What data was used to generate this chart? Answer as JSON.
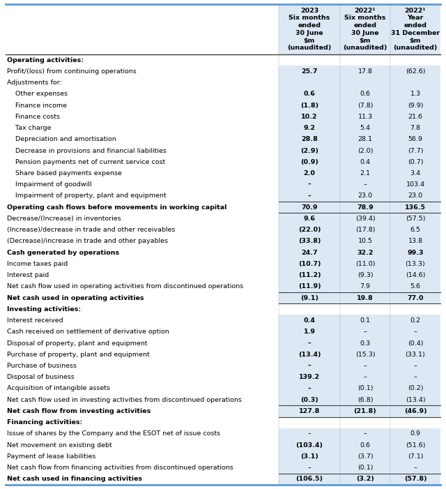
{
  "col_headers": [
    "2023\nSix months\nended\n30 June\n$m\n(unaudited)",
    "2022¹\nSix months\nended\n30 June\n$m\n(unaudited)",
    "2022¹\nYear\nended\n31 December\n$m\n(unaudited)"
  ],
  "rows": [
    {
      "label": "Operating activities:",
      "values": [
        "",
        "",
        ""
      ],
      "style": "section"
    },
    {
      "label": "Profit/(loss) from continuing operations",
      "values": [
        "25.7",
        "17.8",
        "(62.6)"
      ],
      "style": "normal",
      "bold_col0": true
    },
    {
      "label": "Adjustments for:",
      "values": [
        "",
        "",
        ""
      ],
      "style": "normal",
      "bold_col0": false
    },
    {
      "label": "    Other expenses",
      "values": [
        "0.6",
        "0.6",
        "1.3"
      ],
      "style": "normal",
      "bold_col0": true
    },
    {
      "label": "    Finance income",
      "values": [
        "(1.8)",
        "(7.8)",
        "(9.9)"
      ],
      "style": "normal",
      "bold_col0": true
    },
    {
      "label": "    Finance costs",
      "values": [
        "10.2",
        "11.3",
        "21.6"
      ],
      "style": "normal",
      "bold_col0": true
    },
    {
      "label": "    Tax charge",
      "values": [
        "9.2",
        "5.4",
        "7.8"
      ],
      "style": "normal",
      "bold_col0": true
    },
    {
      "label": "    Depreciation and amortisation",
      "values": [
        "28.8",
        "28.1",
        "56.9"
      ],
      "style": "normal",
      "bold_col0": true
    },
    {
      "label": "    Decrease in provisions and financial liabilities",
      "values": [
        "(2.9)",
        "(2.0)",
        "(7.7)"
      ],
      "style": "normal",
      "bold_col0": true
    },
    {
      "label": "    Pension payments net of current service cost",
      "values": [
        "(0.9)",
        "0.4",
        "(0.7)"
      ],
      "style": "normal",
      "bold_col0": true
    },
    {
      "label": "    Share based payments expense",
      "values": [
        "2.0",
        "2.1",
        "3.4"
      ],
      "style": "normal",
      "bold_col0": true
    },
    {
      "label": "    Impairment of goodwill",
      "values": [
        "–",
        "–",
        "103.4"
      ],
      "style": "normal",
      "bold_col0": true
    },
    {
      "label": "    Impairment of property, plant and equipment",
      "values": [
        "–",
        "23.0",
        "23.0"
      ],
      "style": "normal",
      "bold_col0": true
    },
    {
      "label": "Operating cash flows before movements in working capital",
      "values": [
        "70.9",
        "78.9",
        "136.5"
      ],
      "style": "bold_line"
    },
    {
      "label": "Decrease/(Increase) in inventories",
      "values": [
        "9.6",
        "(39.4)",
        "(57.5)"
      ],
      "style": "normal",
      "bold_col0": true
    },
    {
      "label": "(Increase)/decrease in trade and other receivables",
      "values": [
        "(22.0)",
        "(17.8)",
        "6.5"
      ],
      "style": "normal",
      "bold_col0": true
    },
    {
      "label": "(Decrease)/increase in trade and other payables",
      "values": [
        "(33.8)",
        "10.5",
        "13.8"
      ],
      "style": "normal",
      "bold_col0": true
    },
    {
      "label": "Cash generated by operations",
      "values": [
        "24.7",
        "32.2",
        "99.3"
      ],
      "style": "bold"
    },
    {
      "label": "Income taxes paid",
      "values": [
        "(10.7)",
        "(11.0)",
        "(13.3)"
      ],
      "style": "normal",
      "bold_col0": true
    },
    {
      "label": "Interest paid",
      "values": [
        "(11.2)",
        "(9.3)",
        "(14.6)"
      ],
      "style": "normal",
      "bold_col0": true
    },
    {
      "label": "Net cash flow used in operating activities from discontinued operations",
      "values": [
        "(11.9)",
        "7.9",
        "5.6"
      ],
      "style": "normal",
      "bold_col0": true
    },
    {
      "label": "Net cash used in operating activities",
      "values": [
        "(9.1)",
        "19.8",
        "77.0"
      ],
      "style": "bold_line"
    },
    {
      "label": "Investing activities:",
      "values": [
        "",
        "",
        ""
      ],
      "style": "section"
    },
    {
      "label": "Interest received",
      "values": [
        "0.4",
        "0.1",
        "0.2"
      ],
      "style": "normal",
      "bold_col0": true
    },
    {
      "label": "Cash received on settlement of derivative option",
      "values": [
        "1.9",
        "–",
        "–"
      ],
      "style": "normal",
      "bold_col0": true
    },
    {
      "label": "Disposal of property, plant and equipment",
      "values": [
        "–",
        "0.3",
        "(0.4)"
      ],
      "style": "normal",
      "bold_col0": true
    },
    {
      "label": "Purchase of property, plant and equipment",
      "values": [
        "(13.4)",
        "(15.3)",
        "(33.1)"
      ],
      "style": "normal",
      "bold_col0": true
    },
    {
      "label": "Purchase of business",
      "values": [
        "–",
        "–",
        "–"
      ],
      "style": "normal",
      "bold_col0": true
    },
    {
      "label": "Disposal of business",
      "values": [
        "139.2",
        "–",
        "–"
      ],
      "style": "normal",
      "bold_col0": true
    },
    {
      "label": "Acquisition of intangible assets",
      "values": [
        "–",
        "(0.1)",
        "(0.2)"
      ],
      "style": "normal",
      "bold_col0": true
    },
    {
      "label": "Net cash flow used in investing activities from discontinued operations",
      "values": [
        "(0.3)",
        "(6.8)",
        "(13.4)"
      ],
      "style": "normal",
      "bold_col0": true
    },
    {
      "label": "Net cash flow from investing activities",
      "values": [
        "127.8",
        "(21.8)",
        "(46.9)"
      ],
      "style": "bold_line"
    },
    {
      "label": "Financing activities:",
      "values": [
        "",
        "",
        ""
      ],
      "style": "section"
    },
    {
      "label": "Issue of shares by the Company and the ESOT net of issue costs",
      "values": [
        "–",
        "–",
        "0.9"
      ],
      "style": "normal",
      "bold_col0": false
    },
    {
      "label": "Net movement on existing debt",
      "values": [
        "(103.4)",
        "0.6",
        "(51.6)"
      ],
      "style": "normal",
      "bold_col0": true
    },
    {
      "label": "Payment of lease liabilities",
      "values": [
        "(3.1)",
        "(3.7)",
        "(7.1)"
      ],
      "style": "normal",
      "bold_col0": true
    },
    {
      "label": "Net cash flow from financing activities from discontinued operations",
      "values": [
        "–",
        "(0.1)",
        "–"
      ],
      "style": "normal",
      "bold_col0": false
    },
    {
      "label": "Net cash used in financing activities",
      "values": [
        "(106.5)",
        "(3.2)",
        "(57.8)"
      ],
      "style": "bold_line"
    }
  ],
  "col_bg": "#dce9f5",
  "border_color": "#5b9bd5",
  "line_color": "#404040",
  "font_size": 6.8,
  "header_font_size": 6.8
}
